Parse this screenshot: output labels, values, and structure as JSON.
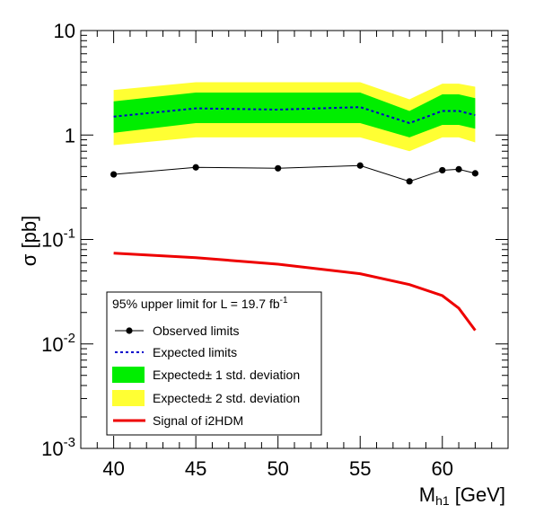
{
  "chart_data": {
    "type": "line",
    "xlabel": {
      "main": "M",
      "sub": "h1",
      "rest": " [GeV]"
    },
    "ylabel": "σ [pb]",
    "x_scale": "linear",
    "y_scale": "log",
    "xlim": [
      38,
      64
    ],
    "ylim": [
      0.001,
      10
    ],
    "x_ticks": [
      40,
      45,
      50,
      55,
      60
    ],
    "y_ticks": [
      {
        "value": 0.001,
        "base": "10",
        "exp": "-3"
      },
      {
        "value": 0.01,
        "base": "10",
        "exp": "-2"
      },
      {
        "value": 0.1,
        "base": "10",
        "exp": "-1"
      },
      {
        "value": 1,
        "base": "1",
        "exp": ""
      },
      {
        "value": 10,
        "base": "10",
        "exp": ""
      }
    ],
    "grid": false,
    "legend_placement": "bottom-left",
    "legend_title": {
      "text": "95% upper limit for L = 19.7 fb",
      "sup": "-1"
    },
    "series": [
      {
        "name": "Expected± 2 std. deviation",
        "kind": "band",
        "color": "#ffff33",
        "x": [
          40,
          45,
          50,
          55,
          58,
          60,
          61,
          62
        ],
        "low": [
          0.8,
          0.95,
          0.95,
          0.95,
          0.7,
          0.95,
          0.95,
          0.85
        ],
        "high": [
          2.7,
          3.2,
          3.2,
          3.2,
          2.2,
          3.1,
          3.1,
          2.9
        ]
      },
      {
        "name": "Expected± 1 std. deviation",
        "kind": "band",
        "color": "#00ee00",
        "x": [
          40,
          45,
          50,
          55,
          58,
          60,
          61,
          62
        ],
        "low": [
          1.05,
          1.3,
          1.3,
          1.3,
          0.95,
          1.25,
          1.25,
          1.15
        ],
        "high": [
          2.1,
          2.55,
          2.55,
          2.55,
          1.7,
          2.45,
          2.45,
          2.25
        ]
      },
      {
        "name": "Expected limits",
        "kind": "dashed",
        "color": "#0000cc",
        "x": [
          40,
          45,
          50,
          55,
          58,
          60,
          61,
          62
        ],
        "y": [
          1.5,
          1.8,
          1.75,
          1.85,
          1.3,
          1.7,
          1.7,
          1.55
        ]
      },
      {
        "name": "Observed limits",
        "kind": "markers",
        "color": "#000000",
        "x": [
          40,
          45,
          50,
          55,
          58,
          60,
          61,
          62
        ],
        "y": [
          0.42,
          0.49,
          0.48,
          0.51,
          0.36,
          0.46,
          0.47,
          0.43
        ]
      },
      {
        "name": "Signal of i2HDM",
        "kind": "line",
        "color": "#ee0000",
        "x": [
          40,
          45,
          50,
          55,
          58,
          60,
          61,
          62
        ],
        "y": [
          0.074,
          0.067,
          0.058,
          0.047,
          0.037,
          0.029,
          0.022,
          0.0135
        ]
      }
    ],
    "legend_order": [
      "Observed limits",
      "Expected limits",
      "Expected± 1 std. deviation",
      "Expected± 2 std. deviation",
      "Signal of i2HDM"
    ]
  }
}
